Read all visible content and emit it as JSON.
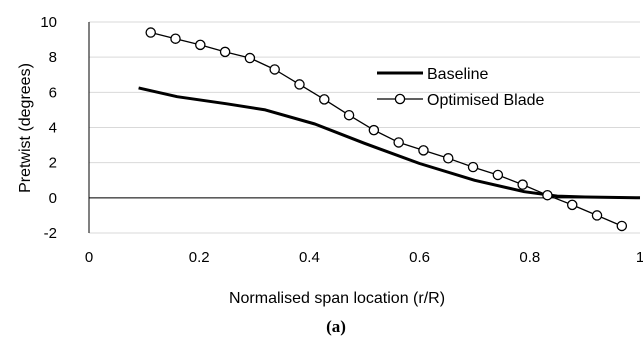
{
  "chart_data": {
    "type": "line",
    "xlabel": "Normalised span location (r/R)",
    "ylabel": "Pretwist (degrees)",
    "caption": "(a)",
    "xlim": [
      0,
      1
    ],
    "ylim": [
      -2,
      10
    ],
    "xticks": [
      "0",
      "0.2",
      "0.4",
      "0.6",
      "0.8",
      "1"
    ],
    "yticks": [
      "-2",
      "0",
      "2",
      "4",
      "6",
      "8",
      "10"
    ],
    "grid": "horizontal",
    "legend_position": "top-right",
    "series": [
      {
        "name": "Baseline",
        "marker": "none",
        "color": "#000000",
        "x": [
          0.09,
          0.16,
          0.25,
          0.32,
          0.41,
          0.5,
          0.6,
          0.7,
          0.79,
          0.85,
          0.9,
          1.0
        ],
        "y": [
          6.25,
          5.75,
          5.35,
          5.0,
          4.2,
          3.1,
          1.95,
          1.0,
          0.35,
          0.1,
          0.05,
          0.0
        ]
      },
      {
        "name": "Optimised Blade",
        "marker": "circle",
        "color": "#000000",
        "x": [
          0.112,
          0.157,
          0.202,
          0.247,
          0.292,
          0.337,
          0.382,
          0.427,
          0.472,
          0.517,
          0.562,
          0.607,
          0.652,
          0.697,
          0.742,
          0.787,
          0.832,
          0.877,
          0.922,
          0.967
        ],
        "y": [
          9.4,
          9.05,
          8.7,
          8.3,
          7.95,
          7.3,
          6.45,
          5.6,
          4.7,
          3.85,
          3.15,
          2.7,
          2.25,
          1.75,
          1.3,
          0.75,
          0.15,
          -0.4,
          -1.0,
          -1.6
        ]
      }
    ]
  }
}
